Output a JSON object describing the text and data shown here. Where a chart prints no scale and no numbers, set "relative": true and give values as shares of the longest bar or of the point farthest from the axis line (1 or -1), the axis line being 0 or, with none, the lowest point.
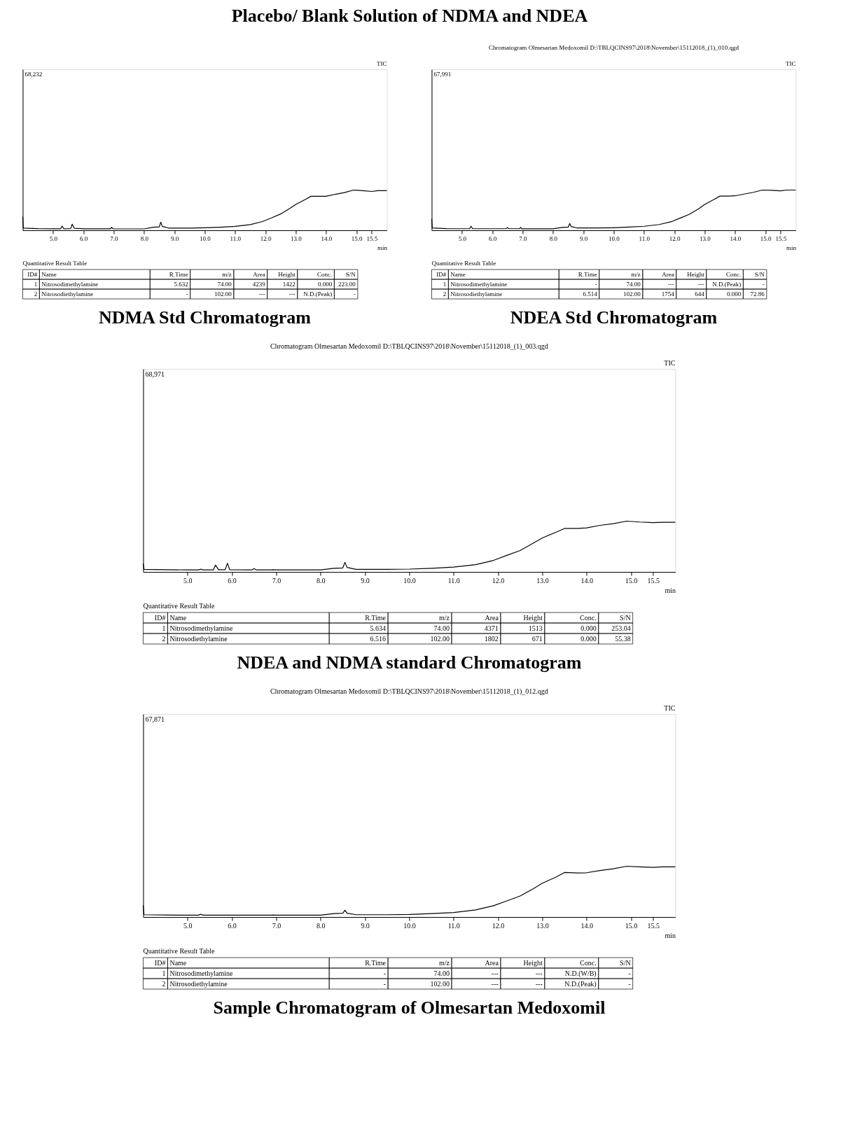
{
  "chart_data": [
    {
      "type": "other",
      "title": "Placebo/ Blank Solution of NDMA and NDEA"
    },
    {
      "type": "line",
      "title": "NDMA Std Chromatogram",
      "xlabel": "min",
      "relative": true,
      "xlim": [
        4.0,
        16.0
      ],
      "xticks": [
        {
          "value": 5,
          "label": "5.0"
        },
        {
          "value": 6,
          "label": "6.0"
        },
        {
          "value": 7,
          "label": "7.0"
        },
        {
          "value": 8,
          "label": "8.0"
        },
        {
          "value": 9,
          "label": "9.0"
        },
        {
          "value": 10,
          "label": "10.0"
        },
        {
          "value": 11,
          "label": "11.0"
        },
        {
          "value": 12,
          "label": "12.0"
        },
        {
          "value": 13,
          "label": "13.0"
        },
        {
          "value": 14,
          "label": "14.0"
        },
        {
          "value": 15,
          "label": "15.0"
        },
        {
          "value": 15.5,
          "label": "15.5"
        }
      ],
      "x": [
        4.0,
        4.02,
        4.5,
        5.0,
        5.25,
        5.3,
        5.35,
        5.58,
        5.63,
        5.7,
        6.0,
        6.9,
        6.93,
        6.97,
        8.0,
        8.3,
        8.5,
        8.55,
        8.6,
        8.8,
        9.5,
        10.0,
        10.5,
        11.0,
        11.5,
        11.9,
        12.2,
        12.5,
        12.8,
        13.0,
        13.3,
        13.5,
        13.8,
        14.0,
        14.3,
        14.6,
        14.9,
        15.2,
        15.5,
        15.7,
        16.0
      ],
      "series": [
        {
          "color": "#000000",
          "values": [
            0.34,
            0.056,
            0.042,
            0.038,
            0.038,
            0.105,
            0.038,
            0.042,
            0.154,
            0.049,
            0.038,
            0.038,
            0.077,
            0.035,
            0.035,
            0.077,
            0.084,
            0.203,
            0.098,
            0.056,
            0.056,
            0.063,
            0.077,
            0.098,
            0.14,
            0.217,
            0.308,
            0.406,
            0.545,
            0.643,
            0.762,
            0.846,
            0.846,
            0.846,
            0.895,
            0.937,
            1,
            0.986,
            0.965,
            0.986,
            0.986
          ]
        }
      ],
      "annotations": [
        "TIC",
        "68,232",
        "Quantitative Result Table",
        "ID# Name R.Time m/z Area Height Conc. S/N",
        "1 Nitrosodimethylamine 5.632 74.00 4239 1422 0.000 223.00",
        "2 Nitrosodiethylamine - 102.00 --- --- N.D.(Peak) -"
      ]
    },
    {
      "type": "line",
      "title": "NDEA Std Chromatogram",
      "subtitle": "Chromatogram Olmesartan Medoxomil D:\\TBLQCINS97\\2018\\November\\15112018_(1)_010.qgd",
      "xlabel": "min",
      "relative": true,
      "xlim": [
        4.0,
        16.0
      ],
      "xticks": [
        {
          "value": 5,
          "label": "5.0"
        },
        {
          "value": 6,
          "label": "6.0"
        },
        {
          "value": 7,
          "label": "7.0"
        },
        {
          "value": 8,
          "label": "8.0"
        },
        {
          "value": 9,
          "label": "9.0"
        },
        {
          "value": 10,
          "label": "10.0"
        },
        {
          "value": 11,
          "label": "11.0"
        },
        {
          "value": 12,
          "label": "12.0"
        },
        {
          "value": 13,
          "label": "13.0"
        },
        {
          "value": 14,
          "label": "14.0"
        },
        {
          "value": 15,
          "label": "15.0"
        },
        {
          "value": 15.5,
          "label": "15.5"
        }
      ],
      "x": [
        4.0,
        4.02,
        4.5,
        5.0,
        5.25,
        5.3,
        5.35,
        6.45,
        6.5,
        6.55,
        6.9,
        6.93,
        6.97,
        8.0,
        8.3,
        8.5,
        8.55,
        8.6,
        8.8,
        9.5,
        10.0,
        10.5,
        11.0,
        11.5,
        11.9,
        12.2,
        12.5,
        12.8,
        13.0,
        13.3,
        13.5,
        13.8,
        14.0,
        14.3,
        14.6,
        14.9,
        15.2,
        15.5,
        15.7,
        16.0
      ],
      "series": [
        {
          "color": "#000000",
          "values": [
            0.286,
            0.057,
            0.043,
            0.039,
            0.039,
            0.1,
            0.039,
            0.039,
            0.064,
            0.039,
            0.039,
            0.071,
            0.036,
            0.036,
            0.071,
            0.079,
            0.171,
            0.093,
            0.057,
            0.057,
            0.064,
            0.079,
            0.1,
            0.143,
            0.214,
            0.307,
            0.4,
            0.536,
            0.643,
            0.764,
            0.85,
            0.85,
            0.857,
            0.9,
            0.943,
            1,
            0.993,
            0.979,
            1,
            1
          ]
        }
      ],
      "annotations": [
        "TIC",
        "67,991",
        "Quantitative Result Table",
        "ID# Name R.Time m/z Area Height Conc. S/N",
        "1 Nitrosodimethylamine - 74.00 --- --- N.D.(Peak) -",
        "2 Nitrosodiethylamine 6.514 102.00 1754 644 0.000 72.86"
      ]
    },
    {
      "type": "line",
      "title": "NDEA and NDMA standard Chromatogram",
      "subtitle": "Chromatogram Olmesartan Medoxomil D:\\TBLQCINS97\\2018\\November\\15112018_(1)_003.qgd",
      "xlabel": "min",
      "relative": true,
      "xlim": [
        4.0,
        16.0
      ],
      "xticks": [
        {
          "value": 5,
          "label": "5.0"
        },
        {
          "value": 6,
          "label": "6.0"
        },
        {
          "value": 7,
          "label": "7.0"
        },
        {
          "value": 8,
          "label": "8.0"
        },
        {
          "value": 9,
          "label": "9.0"
        },
        {
          "value": 10,
          "label": "10.0"
        },
        {
          "value": 11,
          "label": "11.0"
        },
        {
          "value": 12,
          "label": "12.0"
        },
        {
          "value": 13,
          "label": "13.0"
        },
        {
          "value": 14,
          "label": "14.0"
        },
        {
          "value": 15,
          "label": "15.0"
        },
        {
          "value": 15.5,
          "label": "15.5"
        }
      ],
      "x": [
        4.0,
        4.02,
        4.5,
        5.0,
        5.25,
        5.3,
        5.35,
        5.58,
        5.63,
        5.7,
        5.85,
        5.9,
        5.95,
        6.45,
        6.5,
        6.55,
        6.9,
        6.93,
        6.97,
        8.0,
        8.3,
        8.5,
        8.55,
        8.6,
        8.8,
        9.5,
        10.0,
        10.5,
        11.0,
        11.5,
        11.9,
        12.2,
        12.5,
        12.8,
        13.0,
        13.3,
        13.5,
        13.8,
        14.0,
        14.3,
        14.6,
        14.9,
        15.2,
        15.5,
        15.7,
        16.0
      ],
      "series": [
        {
          "color": "#000000",
          "values": [
            0.166,
            0.05,
            0.044,
            0.039,
            0.039,
            0.055,
            0.039,
            0.039,
            0.133,
            0.044,
            0.044,
            0.171,
            0.044,
            0.039,
            0.066,
            0.039,
            0.039,
            0.044,
            0.039,
            0.039,
            0.072,
            0.077,
            0.188,
            0.088,
            0.05,
            0.05,
            0.055,
            0.072,
            0.094,
            0.144,
            0.227,
            0.326,
            0.42,
            0.569,
            0.669,
            0.779,
            0.856,
            0.856,
            0.867,
            0.917,
            0.95,
            1,
            0.983,
            0.972,
            0.978,
            0.978
          ]
        }
      ],
      "annotations": [
        "TIC",
        "68,971",
        "Quantitative Result Table",
        "ID# Name R.Time m/z Area Height Conc. S/N",
        "1 Nitrosodimethylamine 5.634 74.00 4371 1513 0.000 253.04",
        "2 Nitrosodiethylamine 6.516 102.00 1802 671 0.000 55.38"
      ]
    },
    {
      "type": "line",
      "title": "Sample Chromatogram of Olmesartan Medoxomil",
      "subtitle": "Chromatogram Olmesartan Medoxomil D:\\TBLQCINS97\\2018\\November\\15112018_(1)_012.qgd",
      "xlabel": "min",
      "relative": true,
      "xlim": [
        4.0,
        16.0
      ],
      "xticks": [
        {
          "value": 5,
          "label": "5.0"
        },
        {
          "value": 6,
          "label": "6.0"
        },
        {
          "value": 7,
          "label": "7.0"
        },
        {
          "value": 8,
          "label": "8.0"
        },
        {
          "value": 9,
          "label": "9.0"
        },
        {
          "value": 10,
          "label": "10.0"
        },
        {
          "value": 11,
          "label": "11.0"
        },
        {
          "value": 12,
          "label": "12.0"
        },
        {
          "value": 13,
          "label": "13.0"
        },
        {
          "value": 14,
          "label": "14.0"
        },
        {
          "value": 15,
          "label": "15.0"
        },
        {
          "value": 15.5,
          "label": "15.5"
        }
      ],
      "x": [
        4.0,
        4.02,
        4.5,
        5.0,
        5.25,
        5.3,
        5.35,
        6.9,
        6.93,
        6.97,
        8.0,
        8.3,
        8.5,
        8.55,
        8.6,
        8.8,
        9.5,
        10.0,
        10.5,
        11.0,
        11.5,
        11.9,
        12.2,
        12.5,
        12.8,
        13.0,
        13.3,
        13.5,
        13.8,
        14.0,
        14.3,
        14.6,
        14.9,
        15.2,
        15.5,
        15.7,
        16.0
      ],
      "series": [
        {
          "color": "#000000",
          "values": [
            0.229,
            0.045,
            0.039,
            0.036,
            0.036,
            0.056,
            0.036,
            0.036,
            0.039,
            0.036,
            0.036,
            0.067,
            0.073,
            0.134,
            0.073,
            0.045,
            0.045,
            0.05,
            0.067,
            0.089,
            0.14,
            0.223,
            0.318,
            0.413,
            0.559,
            0.665,
            0.782,
            0.877,
            0.866,
            0.872,
            0.916,
            0.95,
            1,
            0.989,
            0.978,
            0.989,
            0.989
          ]
        }
      ],
      "annotations": [
        "TIC",
        "67,871",
        "Quantitative Result Table",
        "ID# Name R.Time m/z Area Height Conc. S/N",
        "1 Nitrosodimethylamine - 74.00 --- --- N.D.(W/B) -",
        "2 Nitrosodiethylamine - 102.00 --- --- N.D.(Peak) -"
      ]
    }
  ]
}
